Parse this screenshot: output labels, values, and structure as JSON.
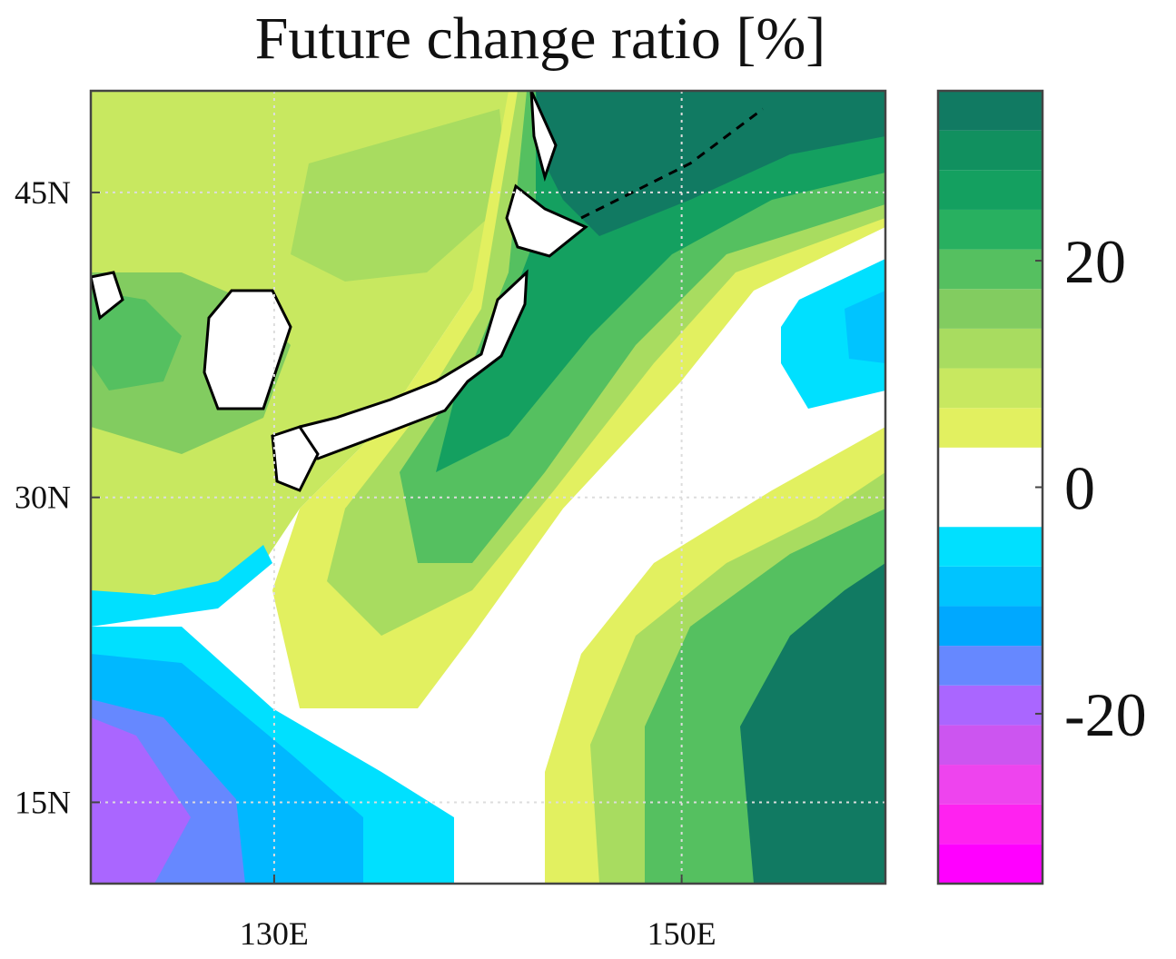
{
  "chart_data": {
    "type": "filled-contour-map",
    "title": "Future change ratio [%]",
    "xlim": [
      121,
      160
    ],
    "ylim": [
      11,
      50
    ],
    "xticks": [
      {
        "value": 130,
        "label": "130E"
      },
      {
        "value": 150,
        "label": "150E"
      }
    ],
    "yticks": [
      {
        "value": 15,
        "label": "15N"
      },
      {
        "value": 30,
        "label": "30N"
      },
      {
        "value": 45,
        "label": "45N"
      }
    ],
    "grid": true,
    "colorbar": {
      "lim": [
        -35,
        35
      ],
      "ticks": [
        -20,
        0,
        20
      ],
      "levels": [
        -35,
        -31.5,
        -28,
        -24.5,
        -21,
        -17.5,
        -14,
        -10.5,
        -7,
        -3.5,
        3.5,
        7,
        10.5,
        14,
        17.5,
        21,
        24.5,
        28,
        31.5,
        35
      ],
      "colors": [
        "#ff00ff",
        "#ff22f0",
        "#ee44ee",
        "#cc55f0",
        "#aa66ff",
        "#6688ff",
        "#00a8ff",
        "#00c4ff",
        "#00e0ff",
        "#ffffff",
        "#e2f060",
        "#c8e860",
        "#a8dc60",
        "#82cc60",
        "#55c060",
        "#28b060",
        "#14a060",
        "#11905f",
        "#117a62"
      ]
    }
  }
}
